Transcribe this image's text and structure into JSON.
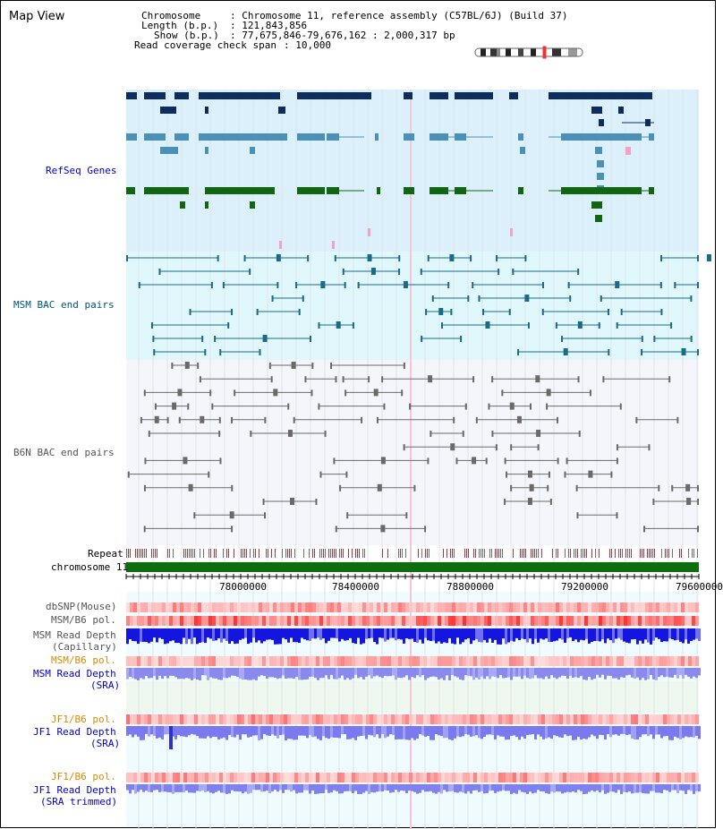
{
  "view": {
    "title": "Map View"
  },
  "info": {
    "chromosome_label": "Chromosome",
    "chromosome_value": ": Chromosome 11, reference assembly (C57BL/6J) (Build 37)",
    "length_label": "Length (b.p.)",
    "length_value": ": 121,843,856",
    "show_label": "Show (b.p.)",
    "show_value": ": 77,675,846-79,676,162 : 2,000,317 bp",
    "coverage_label": "Read coverage check span",
    "coverage_value": ": 10,000"
  },
  "tracks": {
    "refseq": "RefSeq Genes",
    "msm_bac": "MSM BAC end pairs",
    "b6n_bac": "B6N BAC end pairs",
    "repeat": "Repeat",
    "chromosome": "chromosome 11",
    "dbsnp": "dbSNP(Mouse)",
    "msm_b6_pol_1": "MSM/B6 pol.",
    "msm_depth_cap_1": "MSM Read Depth",
    "msm_depth_cap_2": "(Capillary)",
    "msm_b6_pol_2": "MSM/B6 pol.",
    "msm_depth_sra_1": "MSM Read Depth",
    "msm_depth_sra_2": "(SRA)",
    "jf1_b6_pol_1": "JF1/B6 pol.",
    "jf1_depth_sra_1": "JF1 Read Depth",
    "jf1_depth_sra_2": "(SRA)",
    "jf1_b6_pol_2": "JF1/B6 pol.",
    "jf1_depth_trim_1": "JF1 Read Depth",
    "jf1_depth_trim_2": "(SRA trimmed)"
  },
  "ruler": {
    "ticks": [
      "78000000",
      "78400000",
      "78800000",
      "79200000",
      "79600000"
    ]
  },
  "colors": {
    "refseq_bg": "#dcf0fb",
    "msm_bg": "#e0f8fb",
    "b6n_bg": "#f4f6fb",
    "navy": "#0d2d5f",
    "steel": "#4a90b8",
    "green": "#116611",
    "chrom": "#0d6e0d",
    "depth": "#1515e0",
    "depth_light": "#8888f0",
    "pol": "#ff5858"
  }
}
